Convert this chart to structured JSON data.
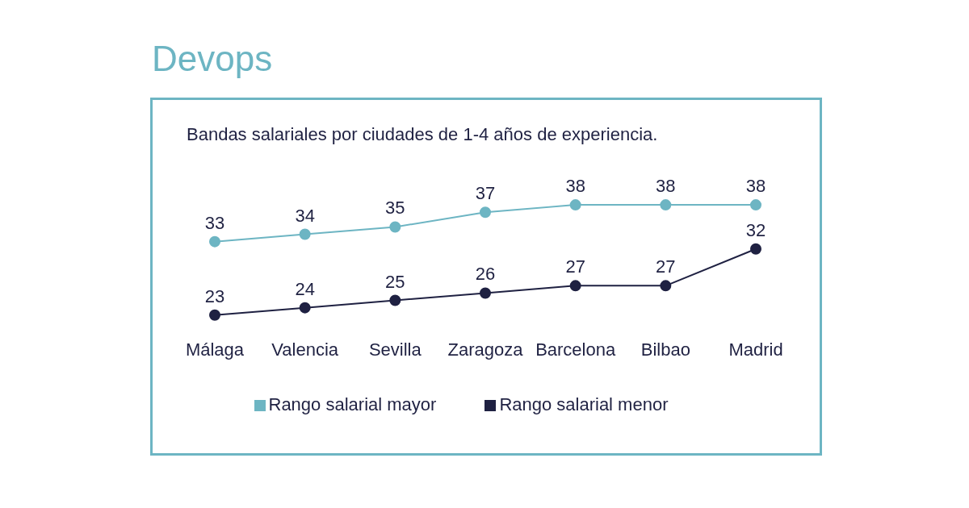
{
  "chart_data": {
    "type": "line",
    "title": "Devops",
    "subtitle": "Bandas salariales por ciudades de 1-4 años de experiencia.",
    "categories": [
      "Málaga",
      "Valencia",
      "Sevilla",
      "Zaragoza",
      "Barcelona",
      "Bilbao",
      "Madrid"
    ],
    "series": [
      {
        "name": "Rango salarial mayor",
        "color": "#6db5c3",
        "values": [
          33,
          34,
          35,
          37,
          38,
          38,
          38
        ]
      },
      {
        "name": "Rango salarial menor",
        "color": "#1f2142",
        "values": [
          23,
          24,
          25,
          26,
          27,
          27,
          32
        ]
      }
    ],
    "data_labels": true,
    "grid": false,
    "legend": "bottom",
    "marker": "circle",
    "line_style": "solid"
  }
}
